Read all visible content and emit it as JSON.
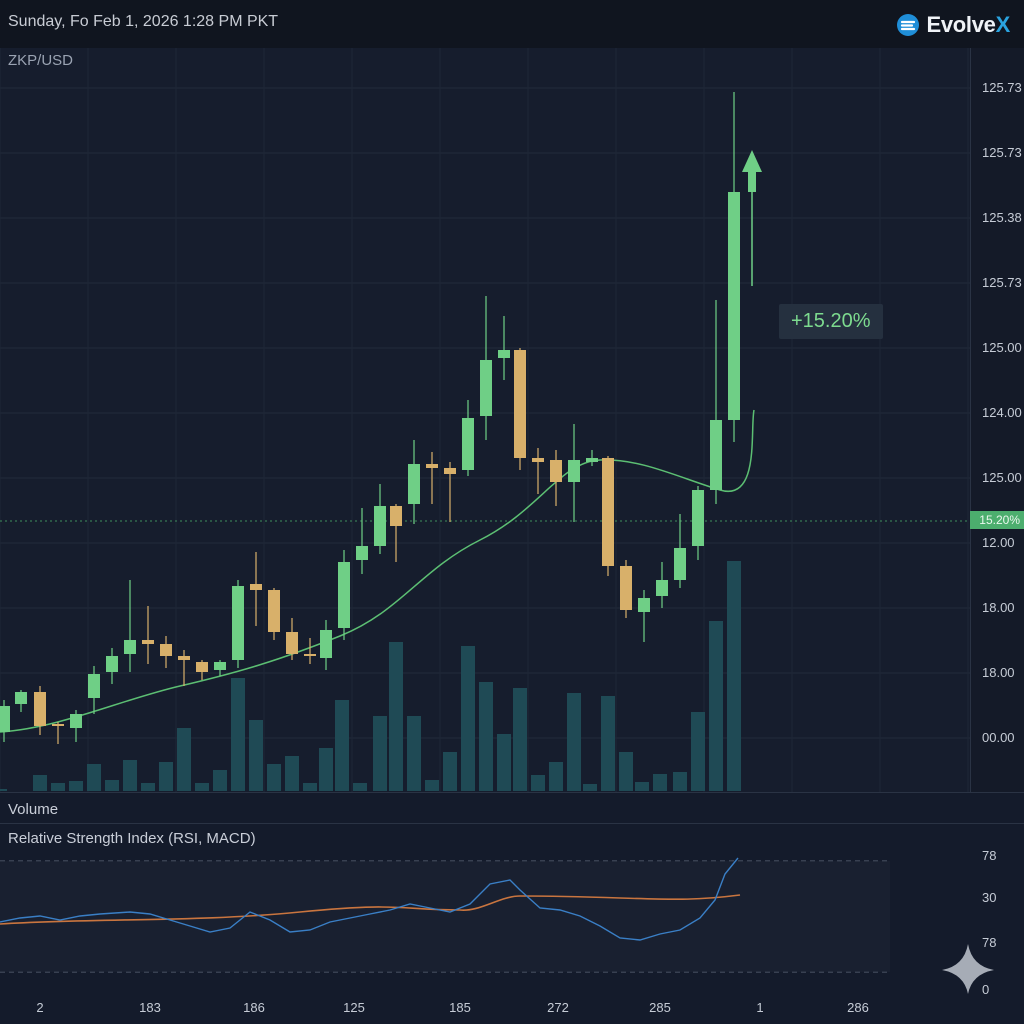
{
  "header": {
    "datetime": "Sunday, Fo Feb 1, 2026 1:28 PM PKT",
    "brand": {
      "name_main": "Evolve",
      "name_x": "X",
      "logo_icon": "evolvex-logo-icon"
    }
  },
  "chart": {
    "symbol": "ZKP/USD",
    "price_ticks": [
      "125.73",
      "125.73",
      "125.38",
      "125.73",
      "125.00",
      "124.00",
      "125.00",
      "12.00",
      "18.00",
      "18.00",
      "00.00"
    ],
    "current_change": "15.20%",
    "change_callout": "+15.20%",
    "trend_arrow_icon": "up-arrow-icon",
    "colors": {
      "up": "#6fcf86",
      "down": "#d8b06a",
      "ma": "#5cbf73",
      "volume": "#1f4a55",
      "rsi": "#3a7fc6",
      "signal": "#c9753f"
    }
  },
  "volume": {
    "label": "Volume"
  },
  "rsi": {
    "label": "Relative Strength Index (RSI, MACD)",
    "ticks": [
      "78",
      "30",
      "78",
      "0"
    ]
  },
  "x_axis": {
    "ticks": [
      "2",
      "183",
      "186",
      "125",
      "185",
      "272",
      "285",
      "1",
      "286"
    ]
  },
  "sparkle_icon": "sparkle-icon",
  "chart_data": {
    "type": "candlestick",
    "symbol": "ZKP/USD",
    "candles": [
      {
        "o": 0,
        "c": 0,
        "dir": "up"
      },
      {
        "o": 0,
        "c": 0,
        "dir": "up"
      },
      {
        "o": 0,
        "c": 0,
        "dir": "down"
      },
      {
        "o": 0,
        "c": 0,
        "dir": "down"
      },
      {
        "o": 0,
        "c": 0,
        "dir": "up"
      }
    ],
    "note_values": {
      "change_percent": 15.2
    }
  }
}
